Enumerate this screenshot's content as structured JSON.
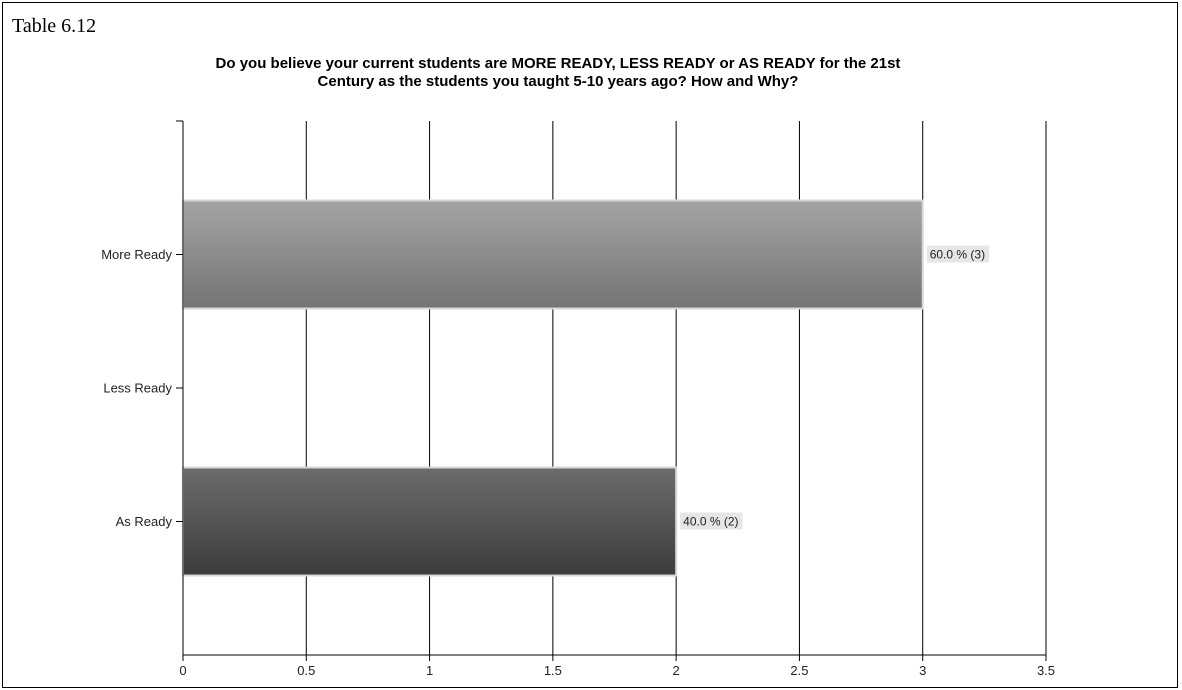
{
  "table_label": "Table 6.12",
  "chart_data": {
    "type": "bar",
    "orientation": "horizontal",
    "title_lines": [
      "Do you believe your current students are MORE READY, LESS READY or AS READY for the 21st",
      "Century as the students you taught 5-10 years ago? How and Why?"
    ],
    "categories": [
      "More Ready",
      "Less Ready",
      "As Ready"
    ],
    "values": [
      3,
      0,
      2
    ],
    "data_labels": [
      "60.0 % (3)",
      "",
      "40.0 % (2)"
    ],
    "colors": [
      "#8a8a8a",
      "#8a8a8a",
      "#4a4a4a"
    ],
    "xlim": [
      0,
      3.5
    ],
    "xticks": [
      0,
      0.5,
      1,
      1.5,
      2,
      2.5,
      3,
      3.5
    ],
    "xtick_labels": [
      "0",
      "0.5",
      "1",
      "1.5",
      "2",
      "2.5",
      "3",
      "3.5"
    ],
    "grid": true,
    "xlabel": "",
    "ylabel": ""
  }
}
